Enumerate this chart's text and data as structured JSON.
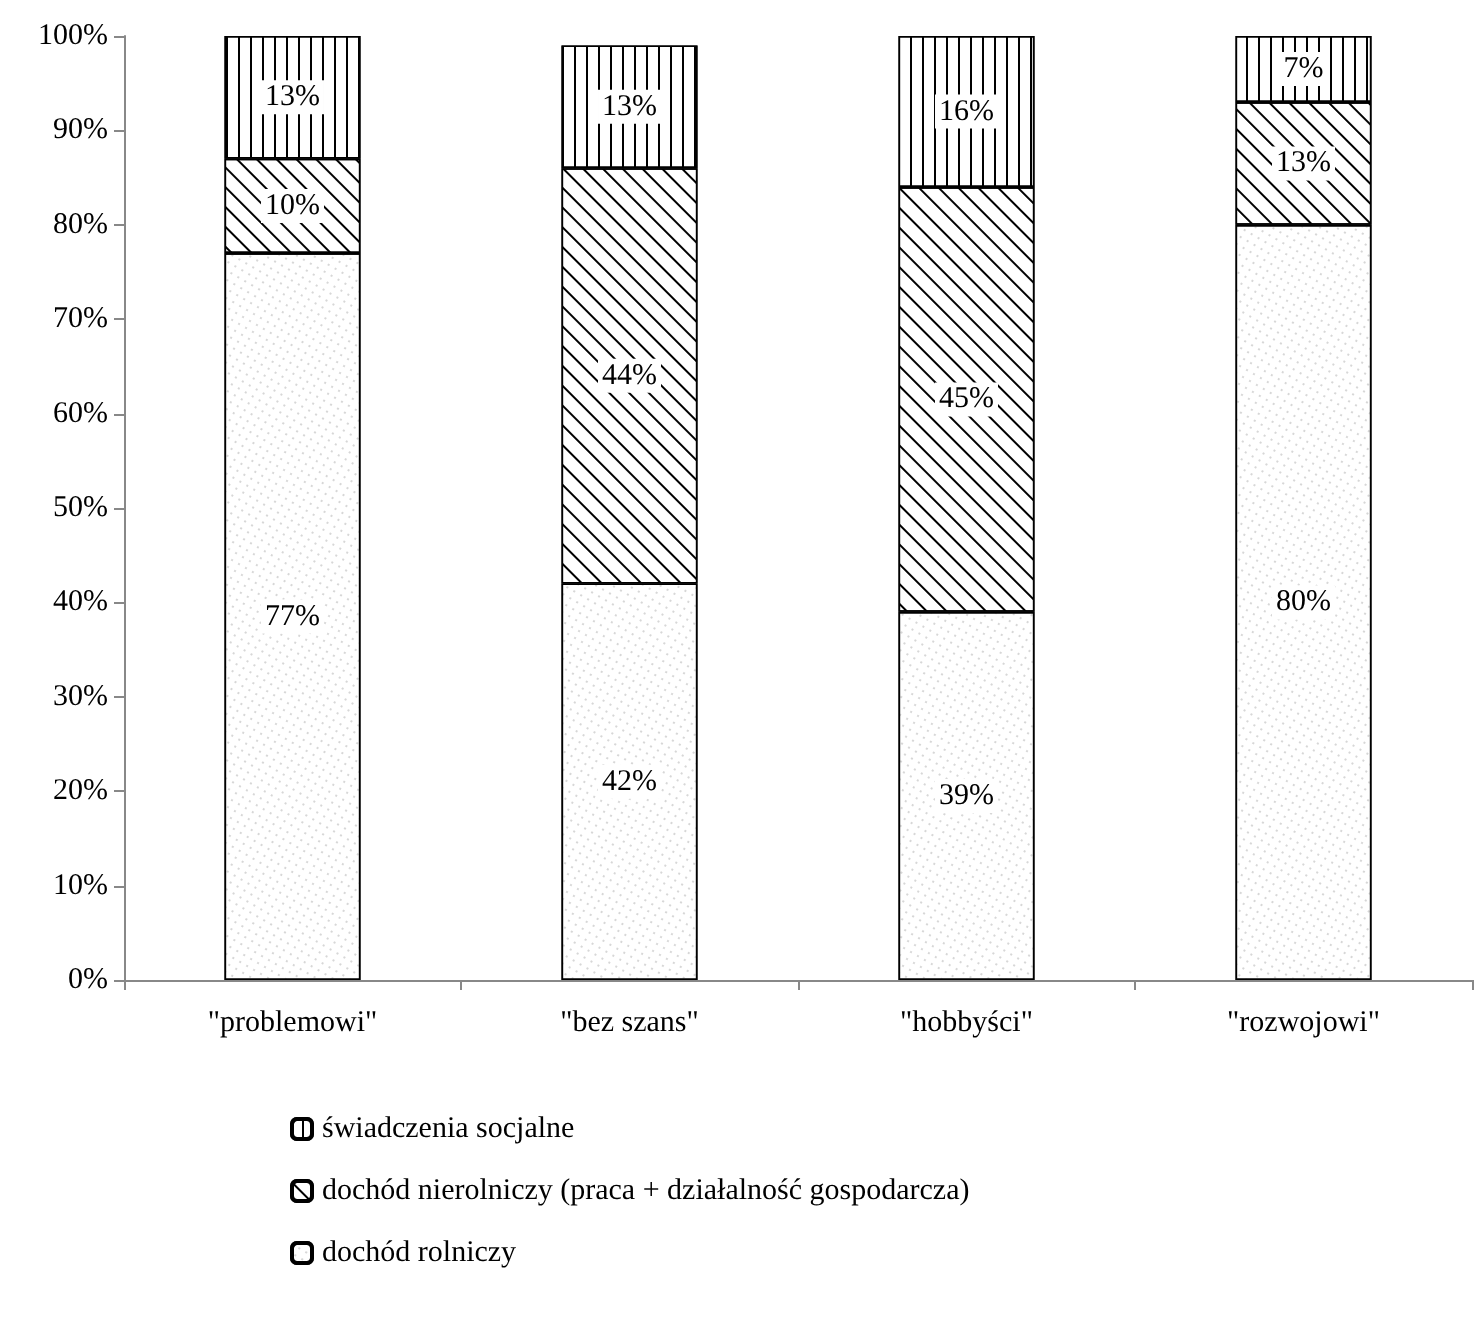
{
  "chart_data": {
    "type": "bar",
    "stacked": true,
    "categories": [
      "\"problemowi\"",
      "\"bez szans\"",
      "\"hobbyści\"",
      "\"rozwojowi\""
    ],
    "series": [
      {
        "name": "dochód rolniczy",
        "color": "#ffffff",
        "values": [
          77,
          42,
          39,
          80
        ],
        "value_labels": [
          "77%",
          "42%",
          "39%",
          "80%"
        ]
      },
      {
        "name": "dochód nierolniczy (praca + działalność gospodarcza)",
        "color": "#ffffff",
        "values": [
          10,
          44,
          45,
          13
        ],
        "value_labels": [
          "10%",
          "44%",
          "45%",
          "13%"
        ]
      },
      {
        "name": "świadczenia socjalne",
        "color": "#ffffff",
        "values": [
          13,
          13,
          16,
          7
        ],
        "value_labels": [
          "13%",
          "13%",
          "16%",
          "7%"
        ]
      }
    ],
    "ylim": [
      0,
      100
    ],
    "yticks": [
      {
        "value": 0,
        "label": "0%"
      },
      {
        "value": 10,
        "label": "10%"
      },
      {
        "value": 20,
        "label": "20%"
      },
      {
        "value": 30,
        "label": "30%"
      },
      {
        "value": 40,
        "label": "40%"
      },
      {
        "value": 50,
        "label": "50%"
      },
      {
        "value": 60,
        "label": "60%"
      },
      {
        "value": 70,
        "label": "70%"
      },
      {
        "value": 80,
        "label": "80%"
      },
      {
        "value": 90,
        "label": "90%"
      },
      {
        "value": 100,
        "label": "100%"
      }
    ],
    "grid": false,
    "legend": "bottom"
  }
}
